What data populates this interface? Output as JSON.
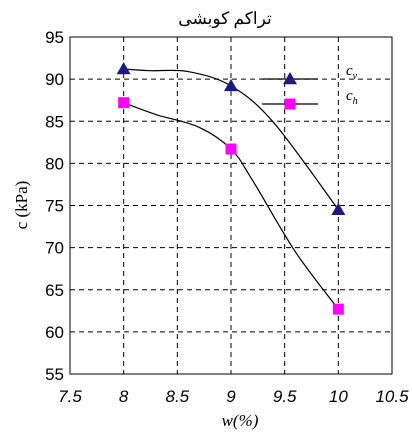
{
  "chart_data": {
    "type": "line",
    "title": "تراکم کوبشی",
    "xlabel": "w(%)",
    "ylabel": "c (kPa)",
    "xlim": [
      7.5,
      10.5
    ],
    "ylim": [
      55,
      95
    ],
    "x_ticks": [
      "7.5",
      "8",
      "8.5",
      "9",
      "9.5",
      "10",
      "10.5"
    ],
    "y_ticks": [
      "55",
      "60",
      "65",
      "70",
      "75",
      "80",
      "85",
      "90",
      "95"
    ],
    "grid": true,
    "legend_position": "top-right",
    "series": [
      {
        "name": "c",
        "subscript": "v",
        "marker": "triangle",
        "color": "#1a1a80",
        "points": [
          {
            "x": 8,
            "y": 91.2
          },
          {
            "x": 9,
            "y": 89.2
          },
          {
            "x": 10,
            "y": 74.5
          }
        ],
        "curve": [
          {
            "x": 8,
            "y": 91.2
          },
          {
            "x": 8.25,
            "y": 91.0
          },
          {
            "x": 8.6,
            "y": 90.9
          },
          {
            "x": 9,
            "y": 89.2
          },
          {
            "x": 9.4,
            "y": 84.8
          },
          {
            "x": 10,
            "y": 74.5
          }
        ]
      },
      {
        "name": "c",
        "subscript": "h",
        "marker": "square",
        "color": "#ff00ff",
        "points": [
          {
            "x": 8,
            "y": 87.2
          },
          {
            "x": 9,
            "y": 81.7
          },
          {
            "x": 10,
            "y": 62.7
          }
        ],
        "curve": [
          {
            "x": 8,
            "y": 87.2
          },
          {
            "x": 8.3,
            "y": 85.8
          },
          {
            "x": 8.7,
            "y": 84.3
          },
          {
            "x": 9,
            "y": 81.7
          },
          {
            "x": 9.2,
            "y": 78.0
          },
          {
            "x": 9.6,
            "y": 69.5
          },
          {
            "x": 10,
            "y": 62.7
          }
        ]
      }
    ]
  }
}
